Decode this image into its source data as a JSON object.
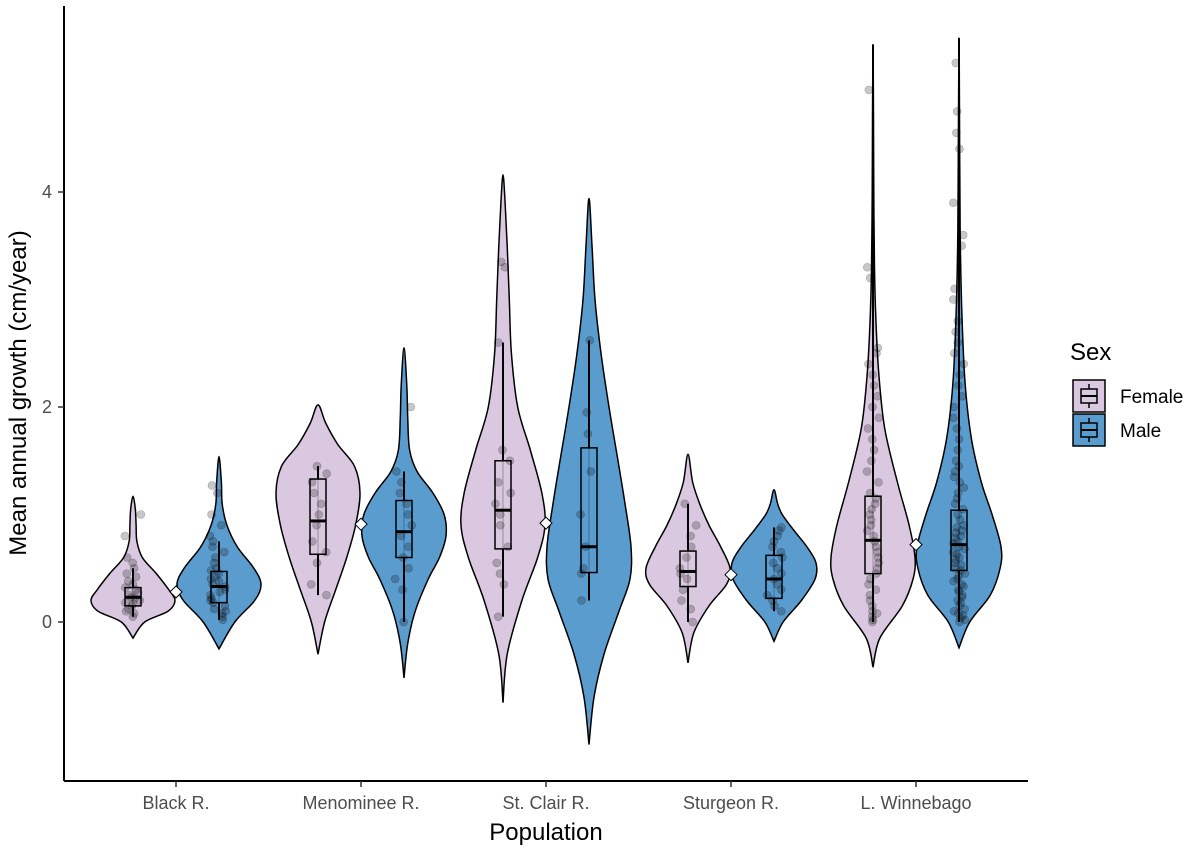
{
  "chart_data": {
    "type": "violin",
    "xlabel": "Population",
    "ylabel": "Mean annual growth (cm/year)",
    "categories": [
      "Black R.",
      "Menominee R.",
      "St. Clair R.",
      "Sturgeon R.",
      "L. Winnebago"
    ],
    "ylim": [
      -1.2,
      5.55
    ],
    "yticks": [
      0,
      2,
      4
    ],
    "grid": false,
    "legend": {
      "title": "Sex",
      "position": "right",
      "entries": [
        {
          "name": "Female",
          "color": "#d9c8df"
        },
        {
          "name": "Male",
          "color": "#5b9ccf"
        }
      ]
    },
    "series": [
      {
        "name": "Female",
        "color": "#d9c8df",
        "groups": [
          {
            "category": "Black R.",
            "min": -0.15,
            "max": 1.17,
            "q1": 0.15,
            "median": 0.23,
            "q3": 0.32,
            "whisker_low": 0.05,
            "whisker_high": 0.5,
            "density": [
              [
                -0.15,
                0.3
              ],
              [
                0.0,
                1.5
              ],
              [
                0.1,
                4.5
              ],
              [
                0.2,
                5.4
              ],
              [
                0.3,
                4.6
              ],
              [
                0.45,
                3.0
              ],
              [
                0.6,
                1.2
              ],
              [
                0.75,
                0.5
              ],
              [
                0.9,
                0.4
              ],
              [
                1.05,
                0.3
              ],
              [
                1.17,
                0.1
              ]
            ],
            "points": [
              0.05,
              0.08,
              0.1,
              0.12,
              0.15,
              0.17,
              0.18,
              0.2,
              0.22,
              0.23,
              0.25,
              0.27,
              0.3,
              0.32,
              0.35,
              0.38,
              0.42,
              0.45,
              0.5,
              0.55,
              0.6,
              0.8,
              1.0
            ]
          },
          {
            "category": "Menominee R.",
            "min": -0.3,
            "max": 2.02,
            "q1": 0.63,
            "median": 0.94,
            "q3": 1.33,
            "whisker_low": 0.25,
            "whisker_high": 1.45,
            "density": [
              [
                -0.3,
                0.1
              ],
              [
                0.0,
                0.6
              ],
              [
                0.3,
                1.6
              ],
              [
                0.6,
                2.6
              ],
              [
                0.9,
                3.4
              ],
              [
                1.2,
                3.8
              ],
              [
                1.45,
                3.3
              ],
              [
                1.65,
                1.8
              ],
              [
                1.85,
                0.7
              ],
              [
                2.02,
                0.1
              ]
            ],
            "points": [
              0.25,
              0.35,
              0.55,
              0.65,
              0.75,
              0.9,
              1.0,
              1.1,
              1.2,
              1.3,
              1.38,
              1.45
            ]
          },
          {
            "category": "St. Clair R.",
            "min": -0.75,
            "max": 4.16,
            "q1": 0.68,
            "median": 1.04,
            "q3": 1.5,
            "whisker_low": 0.05,
            "whisker_high": 2.6,
            "density": [
              [
                -0.75,
                0.1
              ],
              [
                -0.3,
                0.4
              ],
              [
                0.2,
                1.8
              ],
              [
                0.6,
                3.3
              ],
              [
                0.9,
                4.0
              ],
              [
                1.2,
                3.7
              ],
              [
                1.6,
                2.6
              ],
              [
                2.0,
                1.4
              ],
              [
                2.5,
                0.8
              ],
              [
                3.0,
                0.6
              ],
              [
                3.5,
                0.4
              ],
              [
                3.9,
                0.2
              ],
              [
                4.16,
                0.05
              ]
            ],
            "points": [
              0.05,
              0.35,
              0.45,
              0.55,
              0.7,
              0.9,
              1.0,
              1.1,
              1.2,
              1.3,
              1.5,
              1.6,
              2.6,
              3.3,
              3.35
            ]
          },
          {
            "category": "Sturgeon R.",
            "min": -0.38,
            "max": 1.56,
            "q1": 0.33,
            "median": 0.47,
            "q3": 0.66,
            "whisker_low": 0.0,
            "whisker_high": 1.1,
            "density": [
              [
                -0.38,
                0.1
              ],
              [
                -0.1,
                0.5
              ],
              [
                0.15,
                1.8
              ],
              [
                0.35,
                3.3
              ],
              [
                0.5,
                3.6
              ],
              [
                0.7,
                2.8
              ],
              [
                0.9,
                1.8
              ],
              [
                1.1,
                1.0
              ],
              [
                1.3,
                0.4
              ],
              [
                1.56,
                0.05
              ]
            ],
            "points": [
              0.0,
              0.12,
              0.2,
              0.3,
              0.4,
              0.45,
              0.5,
              0.6,
              0.7,
              0.8,
              0.9,
              1.1
            ]
          },
          {
            "category": "L. Winnebago",
            "min": -0.42,
            "max": 5.37,
            "q1": 0.45,
            "median": 0.76,
            "q3": 1.17,
            "whisker_low": 0.0,
            "whisker_high": 5.37,
            "density": [
              [
                -0.42,
                0.1
              ],
              [
                -0.15,
                0.7
              ],
              [
                0.15,
                3.0
              ],
              [
                0.4,
                4.1
              ],
              [
                0.6,
                4.3
              ],
              [
                0.9,
                3.7
              ],
              [
                1.3,
                2.5
              ],
              [
                1.8,
                1.2
              ],
              [
                2.3,
                0.6
              ],
              [
                2.8,
                0.3
              ],
              [
                3.3,
                0.15
              ],
              [
                4.0,
                0.08
              ],
              [
                4.7,
                0.05
              ],
              [
                5.37,
                0.02
              ]
            ],
            "points": [
              0.0,
              0.02,
              0.05,
              0.08,
              0.1,
              0.15,
              0.2,
              0.25,
              0.3,
              0.35,
              0.4,
              0.45,
              0.5,
              0.55,
              0.6,
              0.65,
              0.7,
              0.75,
              0.8,
              0.85,
              0.9,
              0.95,
              1.0,
              1.05,
              1.1,
              1.15,
              1.2,
              1.3,
              1.4,
              1.5,
              1.6,
              1.7,
              1.8,
              1.9,
              2.0,
              2.1,
              2.2,
              2.3,
              2.4,
              2.5,
              2.55,
              3.2,
              3.3,
              4.95
            ]
          }
        ]
      },
      {
        "name": "Male",
        "color": "#5b9ccf",
        "groups": [
          {
            "category": "Black R.",
            "min": -0.25,
            "max": 1.54,
            "q1": 0.18,
            "median": 0.33,
            "q3": 0.47,
            "whisker_low": 0.02,
            "whisker_high": 0.75,
            "density": [
              [
                -0.25,
                0.2
              ],
              [
                0.0,
                2.0
              ],
              [
                0.2,
                4.5
              ],
              [
                0.35,
                5.3
              ],
              [
                0.5,
                4.4
              ],
              [
                0.7,
                2.3
              ],
              [
                0.9,
                1.0
              ],
              [
                1.1,
                0.4
              ],
              [
                1.3,
                0.3
              ],
              [
                1.54,
                0.05
              ]
            ],
            "points": [
              0.02,
              0.05,
              0.08,
              0.1,
              0.12,
              0.15,
              0.18,
              0.2,
              0.22,
              0.25,
              0.28,
              0.3,
              0.33,
              0.35,
              0.38,
              0.4,
              0.42,
              0.45,
              0.48,
              0.5,
              0.55,
              0.6,
              0.65,
              0.7,
              0.75,
              0.8,
              0.9,
              1.0,
              1.2,
              1.27
            ]
          },
          {
            "category": "Menominee R.",
            "min": -0.52,
            "max": 2.55,
            "q1": 0.6,
            "median": 0.84,
            "q3": 1.13,
            "whisker_low": 0.0,
            "whisker_high": 1.4,
            "density": [
              [
                -0.52,
                0.1
              ],
              [
                -0.2,
                0.4
              ],
              [
                0.1,
                1.2
              ],
              [
                0.4,
                2.6
              ],
              [
                0.6,
                3.8
              ],
              [
                0.8,
                4.5
              ],
              [
                1.0,
                4.3
              ],
              [
                1.2,
                3.1
              ],
              [
                1.4,
                1.4
              ],
              [
                1.6,
                0.6
              ],
              [
                1.9,
                0.4
              ],
              [
                2.2,
                0.3
              ],
              [
                2.55,
                0.05
              ]
            ],
            "points": [
              0.0,
              0.3,
              0.4,
              0.5,
              0.6,
              0.7,
              0.8,
              0.9,
              1.0,
              1.1,
              1.2,
              1.3,
              1.4,
              2.0
            ]
          },
          {
            "category": "St. Clair R.",
            "min": -1.14,
            "max": 3.94,
            "q1": 0.46,
            "median": 0.7,
            "q3": 1.62,
            "whisker_low": 0.2,
            "whisker_high": 2.62,
            "density": [
              [
                -1.14,
                0.05
              ],
              [
                -0.7,
                0.5
              ],
              [
                -0.3,
                1.5
              ],
              [
                0.1,
                3.0
              ],
              [
                0.4,
                4.1
              ],
              [
                0.7,
                4.2
              ],
              [
                1.1,
                3.6
              ],
              [
                1.5,
                2.9
              ],
              [
                2.0,
                2.0
              ],
              [
                2.5,
                1.2
              ],
              [
                3.0,
                0.6
              ],
              [
                3.5,
                0.3
              ],
              [
                3.94,
                0.05
              ]
            ],
            "points": [
              0.2,
              0.45,
              0.5,
              0.7,
              1.0,
              1.4,
              1.75,
              1.95,
              2.62
            ]
          },
          {
            "category": "Sturgeon R.",
            "min": -0.18,
            "max": 1.23,
            "q1": 0.22,
            "median": 0.4,
            "q3": 0.62,
            "whisker_low": 0.1,
            "whisker_high": 0.88,
            "density": [
              [
                -0.18,
                0.1
              ],
              [
                0.0,
                1.0
              ],
              [
                0.2,
                3.0
              ],
              [
                0.4,
                4.5
              ],
              [
                0.55,
                4.6
              ],
              [
                0.7,
                3.6
              ],
              [
                0.85,
                2.2
              ],
              [
                1.0,
                0.9
              ],
              [
                1.1,
                0.4
              ],
              [
                1.23,
                0.05
              ]
            ],
            "points": [
              0.1,
              0.15,
              0.2,
              0.25,
              0.3,
              0.35,
              0.4,
              0.45,
              0.5,
              0.55,
              0.6,
              0.65,
              0.7,
              0.75,
              0.8,
              0.85,
              0.88
            ]
          },
          {
            "category": "L. Winnebago",
            "min": -0.24,
            "max": 5.43,
            "q1": 0.48,
            "median": 0.72,
            "q3": 1.04,
            "whisker_low": 0.0,
            "whisker_high": 5.43,
            "density": [
              [
                -0.24,
                0.1
              ],
              [
                0.0,
                1.2
              ],
              [
                0.25,
                3.5
              ],
              [
                0.5,
                4.6
              ],
              [
                0.7,
                4.7
              ],
              [
                1.0,
                3.7
              ],
              [
                1.3,
                2.5
              ],
              [
                1.7,
                1.4
              ],
              [
                2.2,
                0.7
              ],
              [
                2.8,
                0.35
              ],
              [
                3.5,
                0.15
              ],
              [
                4.3,
                0.08
              ],
              [
                5.43,
                0.02
              ]
            ],
            "points": [
              0.0,
              0.02,
              0.04,
              0.06,
              0.08,
              0.1,
              0.12,
              0.15,
              0.18,
              0.2,
              0.23,
              0.25,
              0.28,
              0.3,
              0.33,
              0.35,
              0.38,
              0.4,
              0.43,
              0.45,
              0.48,
              0.5,
              0.53,
              0.55,
              0.58,
              0.6,
              0.63,
              0.65,
              0.68,
              0.7,
              0.73,
              0.75,
              0.78,
              0.8,
              0.83,
              0.85,
              0.88,
              0.9,
              0.95,
              1.0,
              1.05,
              1.1,
              1.15,
              1.2,
              1.25,
              1.3,
              1.35,
              1.4,
              1.45,
              1.5,
              1.6,
              1.7,
              1.8,
              1.9,
              2.0,
              2.1,
              2.2,
              2.3,
              2.4,
              2.5,
              2.6,
              2.7,
              2.8,
              3.0,
              3.1,
              3.5,
              3.6,
              3.9,
              4.4,
              4.55,
              4.75,
              5.2
            ]
          }
        ]
      }
    ],
    "means": [
      {
        "category": "Black R.",
        "value": 0.28
      },
      {
        "category": "Menominee R.",
        "value": 0.91
      },
      {
        "category": "St. Clair R.",
        "value": 0.92
      },
      {
        "category": "Sturgeon R.",
        "value": 0.44
      },
      {
        "category": "L. Winnebago",
        "value": 0.72
      }
    ]
  }
}
